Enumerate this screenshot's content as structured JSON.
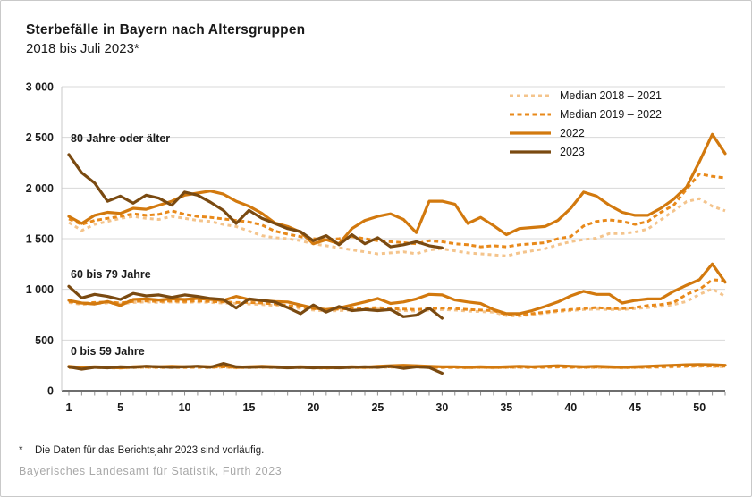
{
  "title": "Sterbefälle in Bayern nach Altersgruppen",
  "subtitle": "2018 bis Juli 2023*",
  "footnote_marker": "*",
  "footnote": "Die Daten für das Berichtsjahr 2023 sind vorläufig.",
  "source": "Bayerisches Landesamt für Statistik, Fürth 2023",
  "colors": {
    "median_2018_2021": "#f4c48c",
    "median_2019_2022": "#e8891a",
    "y2022": "#d2790e",
    "y2023": "#7a4a11",
    "grid": "#d8d8d8",
    "axis": "#3f3f3f",
    "y_axis_line": "#c8c8c8",
    "tick": "#909090",
    "text": "#1a1a1a",
    "source_text": "#a8a8a8",
    "page_border": "#c9c9c9"
  },
  "series_styles": {
    "median_2018_2021": {
      "color": "#f4c48c",
      "width": 3,
      "dash": "4 4"
    },
    "median_2019_2022": {
      "color": "#e8891a",
      "width": 3,
      "dash": "5 3.5"
    },
    "y2022": {
      "color": "#d2790e",
      "width": 3.2,
      "dash": ""
    },
    "y2023": {
      "color": "#7a4a11",
      "width": 3.2,
      "dash": ""
    }
  },
  "legend": [
    {
      "key": "median_2018_2021",
      "label": "Median 2018 – 2021"
    },
    {
      "key": "median_2019_2022",
      "label": "Median 2019 – 2022"
    },
    {
      "key": "y2022",
      "label": "2022"
    },
    {
      "key": "y2023",
      "label": "2023"
    }
  ],
  "chart_data": {
    "type": "line",
    "xlabel": "",
    "ylabel": "",
    "x_range": [
      1,
      52
    ],
    "ylim": [
      0,
      3000
    ],
    "grid": true,
    "legend_position": "top-right",
    "x_label_weeks": [
      1,
      5,
      10,
      15,
      20,
      25,
      30,
      35,
      40,
      45,
      50
    ],
    "y_ticks": [
      {
        "value": 0,
        "label": "0"
      },
      {
        "value": 500,
        "label": "500"
      },
      {
        "value": 1000,
        "label": "1 000"
      },
      {
        "value": 1500,
        "label": "1 500"
      },
      {
        "value": 2000,
        "label": "2 000"
      },
      {
        "value": 2500,
        "label": "2 500"
      },
      {
        "value": 3000,
        "label": "3 000"
      }
    ],
    "series_order": [
      "median_2018_2021",
      "median_2019_2022",
      "y2022",
      "y2023"
    ],
    "plot": {
      "x_axis": 68,
      "x_right": 810,
      "x0": 76,
      "step": 14.392,
      "y0": 436,
      "scale": 0.113333,
      "tick_len": 4.5
    },
    "groups": [
      {
        "key": "age-80-plus",
        "label": "80 Jahre oder älter",
        "label_pos": {
          "left": 78,
          "top": 147
        },
        "series": {
          "median_2018_2021": [
            1660,
            1580,
            1640,
            1670,
            1700,
            1720,
            1700,
            1690,
            1720,
            1700,
            1680,
            1670,
            1640,
            1620,
            1575,
            1530,
            1510,
            1500,
            1480,
            1450,
            1430,
            1410,
            1390,
            1370,
            1350,
            1360,
            1370,
            1350,
            1390,
            1400,
            1380,
            1360,
            1350,
            1340,
            1330,
            1360,
            1380,
            1400,
            1440,
            1470,
            1490,
            1505,
            1550,
            1550,
            1565,
            1595,
            1685,
            1775,
            1865,
            1895,
            1820,
            1775
          ],
          "median_2019_2022": [
            1695,
            1640,
            1680,
            1700,
            1720,
            1745,
            1730,
            1740,
            1775,
            1740,
            1720,
            1710,
            1695,
            1680,
            1665,
            1635,
            1575,
            1545,
            1520,
            1500,
            1490,
            1500,
            1520,
            1500,
            1480,
            1470,
            1460,
            1450,
            1480,
            1470,
            1450,
            1440,
            1420,
            1430,
            1420,
            1440,
            1450,
            1460,
            1500,
            1520,
            1625,
            1670,
            1685,
            1670,
            1640,
            1670,
            1760,
            1830,
            1990,
            2140,
            2115,
            2100
          ],
          "y2022": [
            1720,
            1650,
            1730,
            1760,
            1750,
            1800,
            1790,
            1830,
            1870,
            1930,
            1950,
            1970,
            1940,
            1870,
            1820,
            1750,
            1655,
            1620,
            1565,
            1450,
            1490,
            1450,
            1600,
            1680,
            1720,
            1745,
            1690,
            1560,
            1870,
            1870,
            1840,
            1650,
            1710,
            1630,
            1540,
            1600,
            1610,
            1620,
            1680,
            1800,
            1960,
            1920,
            1830,
            1760,
            1730,
            1730,
            1800,
            1890,
            2010,
            2260,
            2530,
            2340
          ],
          "y2023": [
            2330,
            2150,
            2050,
            1870,
            1920,
            1850,
            1930,
            1900,
            1830,
            1960,
            1930,
            1860,
            1780,
            1650,
            1780,
            1700,
            1650,
            1600,
            1570,
            1480,
            1530,
            1440,
            1540,
            1450,
            1510,
            1420,
            1440,
            1470,
            1430,
            1410
          ]
        }
      },
      {
        "key": "age-60-79",
        "label": "60 bis 79 Jahre",
        "label_pos": {
          "left": 78,
          "top": 299
        },
        "series": {
          "median_2018_2021": [
            870,
            850,
            860,
            865,
            855,
            870,
            875,
            870,
            875,
            870,
            875,
            870,
            865,
            860,
            855,
            850,
            840,
            825,
            810,
            795,
            785,
            790,
            795,
            800,
            805,
            795,
            790,
            785,
            795,
            800,
            795,
            785,
            780,
            775,
            740,
            735,
            750,
            765,
            780,
            790,
            800,
            805,
            800,
            800,
            810,
            820,
            830,
            850,
            880,
            950,
            1005,
            930
          ],
          "median_2019_2022": [
            880,
            860,
            870,
            875,
            865,
            880,
            885,
            880,
            885,
            880,
            885,
            880,
            875,
            870,
            870,
            865,
            855,
            840,
            825,
            810,
            800,
            805,
            810,
            815,
            820,
            810,
            805,
            800,
            810,
            815,
            810,
            800,
            795,
            790,
            750,
            745,
            760,
            775,
            790,
            800,
            810,
            820,
            810,
            810,
            820,
            840,
            850,
            870,
            950,
            1000,
            1095,
            1085
          ],
          "y2022": [
            890,
            865,
            855,
            880,
            840,
            900,
            905,
            895,
            905,
            900,
            910,
            900,
            890,
            930,
            900,
            890,
            880,
            875,
            845,
            815,
            800,
            815,
            845,
            875,
            910,
            860,
            875,
            905,
            950,
            945,
            895,
            875,
            860,
            800,
            760,
            760,
            790,
            830,
            875,
            935,
            980,
            950,
            950,
            865,
            890,
            905,
            905,
            980,
            1040,
            1095,
            1250,
            1070
          ],
          "y2023": [
            1030,
            915,
            950,
            930,
            900,
            960,
            935,
            945,
            920,
            945,
            930,
            910,
            900,
            815,
            905,
            890,
            875,
            820,
            760,
            845,
            775,
            830,
            790,
            800,
            790,
            800,
            730,
            745,
            815,
            715
          ]
        }
      },
      {
        "key": "age-0-59",
        "label": "0 bis 59 Jahre",
        "label_pos": {
          "left": 78,
          "top": 385
        },
        "series": {
          "median_2018_2021": [
            225,
            222,
            226,
            224,
            222,
            226,
            228,
            226,
            228,
            226,
            228,
            226,
            230,
            224,
            226,
            228,
            226,
            224,
            226,
            224,
            221,
            224,
            226,
            224,
            228,
            230,
            233,
            230,
            228,
            226,
            226,
            224,
            226,
            224,
            226,
            228,
            226,
            228,
            230,
            228,
            226,
            228,
            226,
            224,
            226,
            228,
            230,
            233,
            237,
            240,
            237,
            235
          ],
          "median_2019_2022": [
            230,
            226,
            230,
            228,
            226,
            230,
            232,
            230,
            232,
            230,
            232,
            230,
            235,
            228,
            230,
            232,
            230,
            228,
            230,
            228,
            225,
            228,
            230,
            228,
            232,
            235,
            238,
            235,
            232,
            230,
            230,
            228,
            230,
            228,
            230,
            232,
            230,
            232,
            235,
            232,
            230,
            232,
            230,
            228,
            230,
            232,
            235,
            238,
            242,
            245,
            242,
            240
          ],
          "y2022": [
            240,
            228,
            235,
            230,
            225,
            235,
            240,
            235,
            240,
            235,
            240,
            235,
            245,
            230,
            235,
            240,
            235,
            230,
            235,
            230,
            225,
            230,
            235,
            230,
            240,
            245,
            250,
            245,
            240,
            235,
            235,
            230,
            235,
            230,
            235,
            240,
            235,
            240,
            245,
            240,
            235,
            240,
            235,
            230,
            235,
            240,
            245,
            250,
            255,
            258,
            255,
            250
          ],
          "y2023": [
            235,
            212,
            230,
            225,
            235,
            230,
            240,
            235,
            230,
            235,
            240,
            230,
            268,
            235,
            230,
            235,
            230,
            225,
            230,
            225,
            230,
            225,
            230,
            235,
            230,
            240,
            220,
            235,
            228,
            172
          ]
        }
      }
    ]
  }
}
